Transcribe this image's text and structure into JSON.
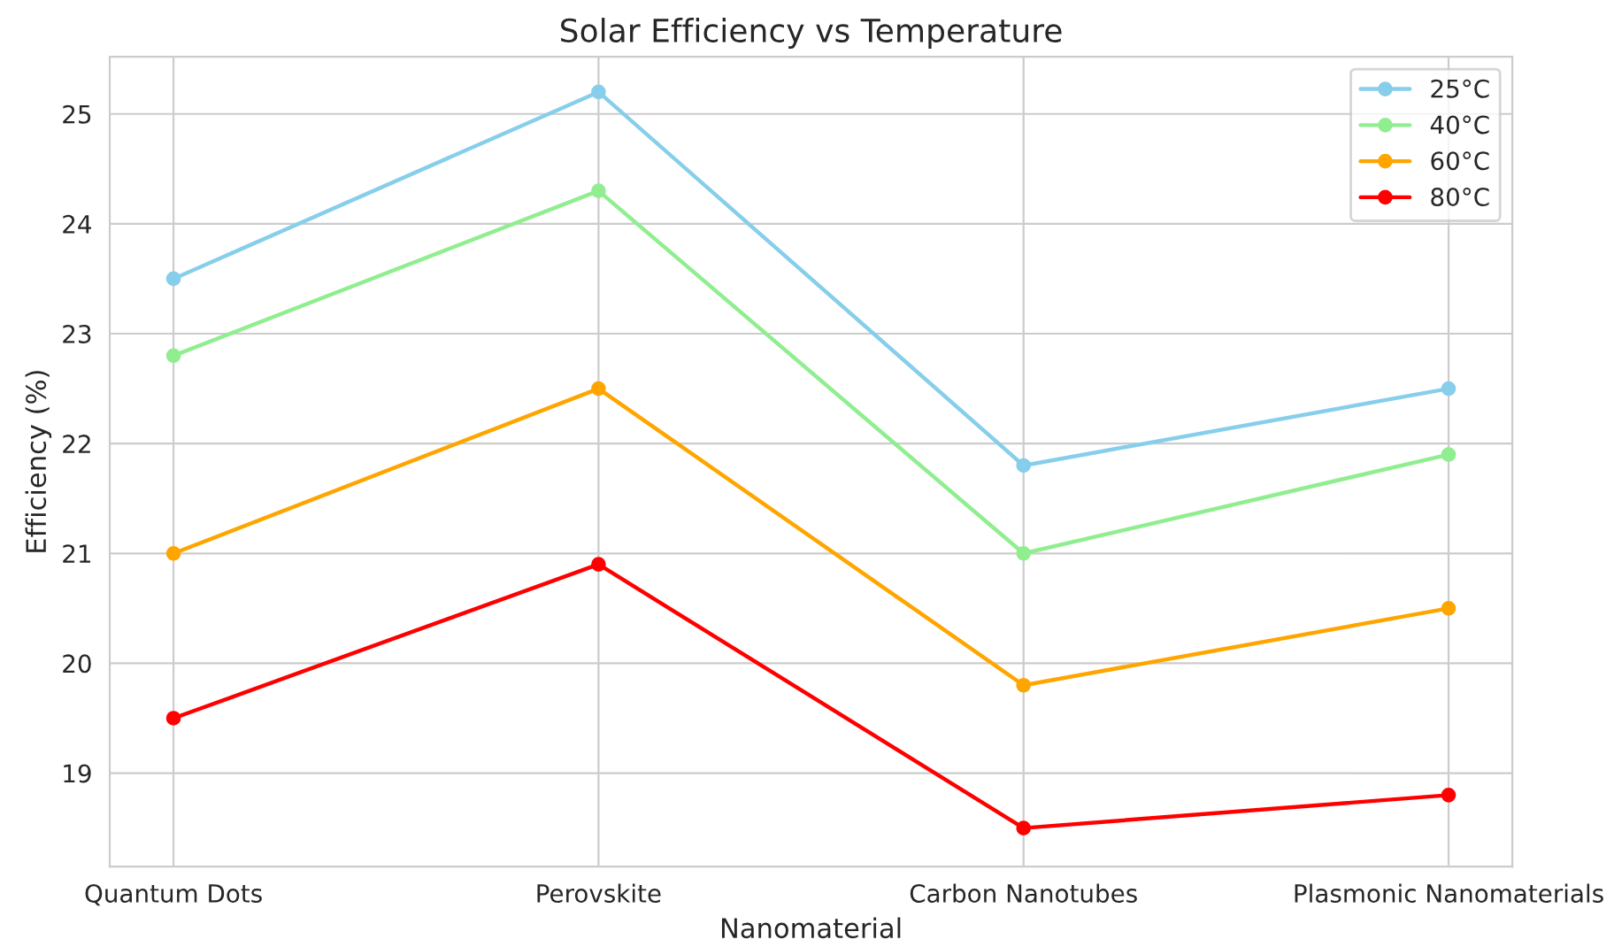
{
  "chart_data": {
    "type": "line",
    "title": "Solar Efficiency vs Temperature",
    "xlabel": "Nanomaterial",
    "ylabel": "Efficiency (%)",
    "categories": [
      "Quantum Dots",
      "Perovskite",
      "Carbon Nanotubes",
      "Plasmonic Nanomaterials"
    ],
    "series": [
      {
        "name": "25°C",
        "color": "#87ceeb",
        "values": [
          23.5,
          25.2,
          21.8,
          22.5
        ]
      },
      {
        "name": "40°C",
        "color": "#90ee90",
        "values": [
          22.8,
          24.3,
          21.0,
          21.9
        ]
      },
      {
        "name": "60°C",
        "color": "#ffa500",
        "values": [
          21.0,
          22.5,
          19.8,
          20.5
        ]
      },
      {
        "name": "80°C",
        "color": "#ff0000",
        "values": [
          19.5,
          20.9,
          18.5,
          18.8
        ]
      }
    ],
    "ylim": [
      18.15,
      25.52
    ],
    "yticks": [
      19,
      20,
      21,
      22,
      23,
      24,
      25
    ],
    "grid": true,
    "legend": "top right",
    "marker": "circle",
    "line_style": "solid"
  }
}
